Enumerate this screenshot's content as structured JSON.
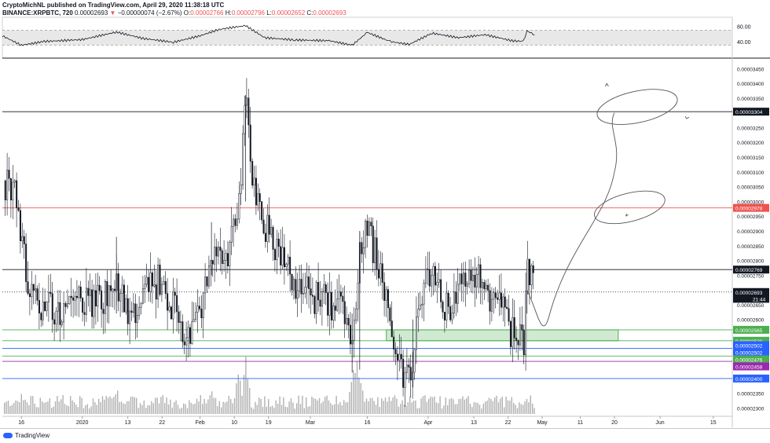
{
  "header": {
    "line1": "CryptoMichNL published on TradingView.com, April 29, 2020 11:38:18 UTC",
    "symbol": "BINANCE:XRPBTC, 720",
    "last": "0.00002693",
    "change": "−0.00000074 (−2.67%)",
    "o_label": "O:",
    "o_value": "0.00002766",
    "h_label": "H:",
    "h_value": "0.00002796",
    "l_label": "L:",
    "l_value": "0.00002652",
    "c_label": "C:",
    "c_value": "0.00002693"
  },
  "colors": {
    "up": "#131722",
    "black_line": "#131722",
    "red_line": "#ef5350",
    "green_line": "#4caf50",
    "blue_line": "#2962ff",
    "purple_line": "#9c27b0",
    "zone_fill": "#c8e6c9",
    "zone_border": "#4caf50",
    "rsi_band": "#e8e8e8"
  },
  "footer": {
    "brand": "TradingView"
  },
  "chart_data": {
    "type": "candlestick",
    "instrument": "BINANCE:XRPBTC",
    "interval": "720",
    "ylim": [
      2.28e-05,
      3.48e-05
    ],
    "y_ticks": [
      "0.00003450",
      "0.00003400",
      "0.00003350",
      "0.00003250",
      "0.00003200",
      "0.00003150",
      "0.00003100",
      "0.00003050",
      "0.00003000",
      "0.00002950",
      "0.00002900",
      "0.00002850",
      "0.00002800",
      "0.00002750",
      "0.00002650",
      "0.00002600",
      "0.00002350",
      "0.00002300"
    ],
    "y_tick_values": [
      3.45e-05,
      3.4e-05,
      3.35e-05,
      3.25e-05,
      3.2e-05,
      3.15e-05,
      3.1e-05,
      3.05e-05,
      3e-05,
      2.95e-05,
      2.9e-05,
      2.85e-05,
      2.8e-05,
      2.75e-05,
      2.65e-05,
      2.6e-05,
      2.35e-05,
      2.3e-05
    ],
    "x_ticks": [
      {
        "label": "16",
        "date": "2019-12-16"
      },
      {
        "label": "2020",
        "date": "2020-01-01"
      },
      {
        "label": "13",
        "date": "2020-01-13"
      },
      {
        "label": "22",
        "date": "2020-01-22"
      },
      {
        "label": "Feb",
        "date": "2020-02-01"
      },
      {
        "label": "10",
        "date": "2020-02-10"
      },
      {
        "label": "19",
        "date": "2020-02-19"
      },
      {
        "label": "Mar",
        "date": "2020-03-01"
      },
      {
        "label": "16",
        "date": "2020-03-16"
      },
      {
        "label": "Apr",
        "date": "2020-04-01"
      },
      {
        "label": "13",
        "date": "2020-04-13"
      },
      {
        "label": "22",
        "date": "2020-04-22"
      },
      {
        "label": "May",
        "date": "2020-05-01"
      },
      {
        "label": "11",
        "date": "2020-05-11"
      },
      {
        "label": "20",
        "date": "2020-05-20"
      },
      {
        "label": "Jun",
        "date": "2020-06-01"
      },
      {
        "label": "15",
        "date": "2020-06-15"
      }
    ],
    "x_range": [
      "2019-12-11",
      "2020-06-20"
    ],
    "price_path": [
      {
        "date": "2019-12-11",
        "price": 3.07e-05
      },
      {
        "date": "2019-12-14",
        "price": 3.02e-05
      },
      {
        "date": "2019-12-18",
        "price": 2.71e-05
      },
      {
        "date": "2019-12-22",
        "price": 2.64e-05
      },
      {
        "date": "2019-12-27",
        "price": 2.62e-05
      },
      {
        "date": "2020-01-01",
        "price": 2.67e-05
      },
      {
        "date": "2020-01-06",
        "price": 2.66e-05
      },
      {
        "date": "2020-01-10",
        "price": 2.7e-05
      },
      {
        "date": "2020-01-13",
        "price": 2.62e-05
      },
      {
        "date": "2020-01-17",
        "price": 2.67e-05
      },
      {
        "date": "2020-01-21",
        "price": 2.74e-05
      },
      {
        "date": "2020-01-25",
        "price": 2.63e-05
      },
      {
        "date": "2020-01-29",
        "price": 2.54e-05
      },
      {
        "date": "2020-02-01",
        "price": 2.62e-05
      },
      {
        "date": "2020-02-04",
        "price": 2.85e-05
      },
      {
        "date": "2020-02-08",
        "price": 2.79e-05
      },
      {
        "date": "2020-02-11",
        "price": 3e-05
      },
      {
        "date": "2020-02-13",
        "price": 3.33e-05
      },
      {
        "date": "2020-02-15",
        "price": 3.05e-05
      },
      {
        "date": "2020-02-18",
        "price": 2.91e-05
      },
      {
        "date": "2020-02-22",
        "price": 2.82e-05
      },
      {
        "date": "2020-02-26",
        "price": 2.72e-05
      },
      {
        "date": "2020-03-02",
        "price": 2.67e-05
      },
      {
        "date": "2020-03-06",
        "price": 2.66e-05
      },
      {
        "date": "2020-03-10",
        "price": 2.62e-05
      },
      {
        "date": "2020-03-12",
        "price": 2.47e-05
      },
      {
        "date": "2020-03-14",
        "price": 2.85e-05
      },
      {
        "date": "2020-03-16",
        "price": 2.89e-05
      },
      {
        "date": "2020-03-19",
        "price": 2.78e-05
      },
      {
        "date": "2020-03-22",
        "price": 2.58e-05
      },
      {
        "date": "2020-03-25",
        "price": 2.42e-05
      },
      {
        "date": "2020-03-27",
        "price": 2.4e-05
      },
      {
        "date": "2020-03-30",
        "price": 2.7e-05
      },
      {
        "date": "2020-04-02",
        "price": 2.77e-05
      },
      {
        "date": "2020-04-05",
        "price": 2.62e-05
      },
      {
        "date": "2020-04-09",
        "price": 2.7e-05
      },
      {
        "date": "2020-04-13",
        "price": 2.76e-05
      },
      {
        "date": "2020-04-16",
        "price": 2.69e-05
      },
      {
        "date": "2020-04-20",
        "price": 2.66e-05
      },
      {
        "date": "2020-04-23",
        "price": 2.55e-05
      },
      {
        "date": "2020-04-26",
        "price": 2.53e-05
      },
      {
        "date": "2020-04-27",
        "price": 2.76e-05
      },
      {
        "date": "2020-04-29",
        "price": 2.693e-05
      }
    ],
    "horizontal_lines": [
      {
        "label": "0.00003304",
        "price": 3.304e-05,
        "color": "#131722"
      },
      {
        "label": "0.00002978",
        "price": 2.978e-05,
        "color": "#ef5350"
      },
      {
        "label": "0.00002769",
        "price": 2.769e-05,
        "color": "#131722"
      },
      {
        "label": "0.00002565",
        "price": 2.565e-05,
        "color": "#4caf50"
      },
      {
        "label": "0.00002528",
        "price": 2.528e-05,
        "color": "#4caf50"
      },
      {
        "label": "0.00002502",
        "price": 2.502e-05,
        "color": "#2962ff"
      },
      {
        "label": "0.00002476",
        "price": 2.476e-05,
        "color": "#4caf50"
      },
      {
        "label": "0.00002458",
        "price": 2.458e-05,
        "color": "#9c27b0"
      },
      {
        "label": "0.00002400",
        "price": 2.4e-05,
        "color": "#2962ff"
      }
    ],
    "price_tags": [
      {
        "label": "0.00003304",
        "price": 3.304e-05,
        "color": "#131722",
        "text": "#ffffff"
      },
      {
        "label": "0.00002978",
        "price": 2.978e-05,
        "color": "#ef5350",
        "text": "#ffffff"
      },
      {
        "label": "0.00002769",
        "price": 2.769e-05,
        "color": "#131722",
        "text": "#ffffff"
      },
      {
        "label": "0.00002693",
        "price": 2.693e-05,
        "color": "#131722",
        "text": "#ffffff"
      },
      {
        "label": "21:44",
        "price": 2.67e-05,
        "color": "#131722",
        "text": "#ffffff"
      },
      {
        "label": "0.00002565",
        "price": 2.565e-05,
        "color": "#4caf50",
        "text": "#ffffff"
      },
      {
        "label": "0.00002528",
        "price": 2.528e-05,
        "color": "#4caf50",
        "text": "#ffffff"
      },
      {
        "label": "0.00002502",
        "price": 2.513e-05,
        "color": "#2962ff",
        "text": "#ffffff"
      },
      {
        "label": "0.00002502",
        "price": 2.489e-05,
        "color": "#2962ff",
        "text": "#ffffff"
      },
      {
        "label": "0.00002476",
        "price": 2.465e-05,
        "color": "#4caf50",
        "text": "#ffffff"
      },
      {
        "label": "0.00002458",
        "price": 2.441e-05,
        "color": "#9c27b0",
        "text": "#ffffff"
      },
      {
        "label": "0.00002400",
        "price": 2.4e-05,
        "color": "#2962ff",
        "text": "#ffffff"
      }
    ],
    "support_zone": {
      "from": "2020-03-21",
      "to": "2020-05-21",
      "low": 2.528e-05,
      "high": 2.565e-05
    },
    "rsi": {
      "ticks": [
        "80.00",
        "40.00"
      ],
      "tick_values": [
        80,
        40
      ],
      "band": [
        30,
        70
      ],
      "ylim": [
        0,
        100
      ],
      "path": [
        {
          "date": "2019-12-11",
          "v": 55
        },
        {
          "date": "2019-12-16",
          "v": 30
        },
        {
          "date": "2019-12-22",
          "v": 40
        },
        {
          "date": "2020-01-01",
          "v": 45
        },
        {
          "date": "2020-01-10",
          "v": 65
        },
        {
          "date": "2020-01-17",
          "v": 48
        },
        {
          "date": "2020-01-25",
          "v": 38
        },
        {
          "date": "2020-02-01",
          "v": 55
        },
        {
          "date": "2020-02-06",
          "v": 72
        },
        {
          "date": "2020-02-13",
          "v": 82
        },
        {
          "date": "2020-02-18",
          "v": 50
        },
        {
          "date": "2020-02-26",
          "v": 44
        },
        {
          "date": "2020-03-06",
          "v": 42
        },
        {
          "date": "2020-03-12",
          "v": 30
        },
        {
          "date": "2020-03-16",
          "v": 64
        },
        {
          "date": "2020-03-22",
          "v": 40
        },
        {
          "date": "2020-03-27",
          "v": 32
        },
        {
          "date": "2020-04-02",
          "v": 62
        },
        {
          "date": "2020-04-09",
          "v": 50
        },
        {
          "date": "2020-04-16",
          "v": 58
        },
        {
          "date": "2020-04-23",
          "v": 42
        },
        {
          "date": "2020-04-26",
          "v": 40
        },
        {
          "date": "2020-04-27",
          "v": 68
        },
        {
          "date": "2020-04-29",
          "v": 58
        }
      ]
    },
    "volume_peaks": [
      {
        "date": "2020-02-11",
        "v": 0.85
      },
      {
        "date": "2020-02-13",
        "v": 1.0
      },
      {
        "date": "2020-03-12",
        "v": 0.9
      },
      {
        "date": "2020-03-13",
        "v": 1.0
      },
      {
        "date": "2020-03-14",
        "v": 0.7
      },
      {
        "date": "2020-03-27",
        "v": 0.35
      },
      {
        "date": "2020-01-10",
        "v": 0.45
      },
      {
        "date": "2020-02-04",
        "v": 0.45
      },
      {
        "date": "2019-12-16",
        "v": 0.35
      },
      {
        "date": "2020-04-27",
        "v": 0.3
      }
    ]
  }
}
